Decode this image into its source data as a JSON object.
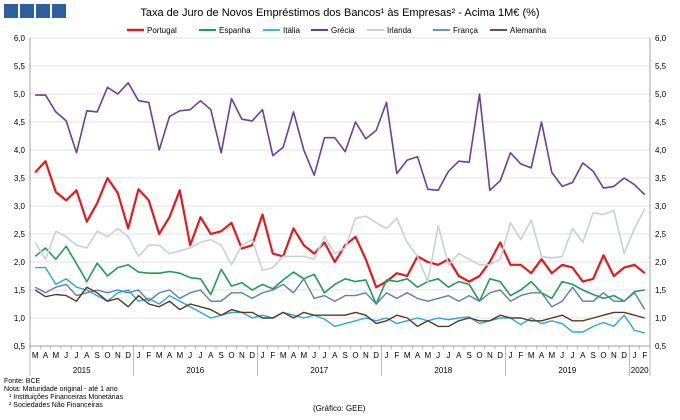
{
  "chart_data": {
    "type": "line",
    "title": "Taxa de Juro de Novos Empréstimos dos Bancos¹ às Empresas² - Acima 1M€ (%)",
    "ylim": [
      0.5,
      6.0
    ],
    "yticks": [
      "0,5",
      "1,0",
      "1,5",
      "2,0",
      "2,5",
      "3,0",
      "3,5",
      "4,0",
      "4,5",
      "5,0",
      "5,5",
      "6,0"
    ],
    "ytick_values": [
      0.5,
      1.0,
      1.5,
      2.0,
      2.5,
      3.0,
      3.5,
      4.0,
      4.5,
      5.0,
      5.5,
      6.0
    ],
    "months": [
      "M",
      "A",
      "M",
      "J",
      "J",
      "A",
      "S",
      "O",
      "N",
      "D",
      "J",
      "F",
      "M",
      "A",
      "M",
      "J",
      "J",
      "A",
      "S",
      "O",
      "N",
      "D",
      "J",
      "F",
      "M",
      "A",
      "M",
      "J",
      "J",
      "A",
      "S",
      "O",
      "N",
      "D",
      "J",
      "F",
      "M",
      "A",
      "M",
      "J",
      "J",
      "A",
      "S",
      "O",
      "N",
      "D",
      "J",
      "F",
      "M",
      "A",
      "M",
      "J",
      "J",
      "A",
      "S",
      "O",
      "N",
      "D",
      "J",
      "F"
    ],
    "years": [
      {
        "label": "2015",
        "start": 0,
        "end": 10
      },
      {
        "label": "2016",
        "start": 10,
        "end": 22
      },
      {
        "label": "2017",
        "start": 22,
        "end": 34
      },
      {
        "label": "2018",
        "start": 34,
        "end": 46
      },
      {
        "label": "2019",
        "start": 46,
        "end": 58
      },
      {
        "label": "2020",
        "start": 58,
        "end": 60
      }
    ],
    "series": [
      {
        "name": "Portugal",
        "color": "#e31a1c",
        "width": 2.2,
        "values": [
          3.6,
          3.8,
          3.25,
          3.1,
          3.28,
          2.72,
          3.05,
          3.5,
          3.23,
          2.6,
          3.3,
          3.1,
          2.5,
          2.8,
          3.28,
          2.3,
          2.8,
          2.5,
          2.55,
          2.7,
          2.24,
          2.3,
          2.85,
          2.15,
          2.1,
          2.6,
          2.3,
          2.15,
          2.35,
          2.0,
          2.3,
          2.45,
          2.05,
          1.55,
          1.65,
          1.8,
          1.75,
          2.1,
          2.0,
          1.95,
          2.05,
          1.75,
          1.65,
          1.75,
          2.0,
          2.35,
          1.95,
          1.95,
          1.8,
          2.05,
          1.8,
          1.95,
          1.9,
          1.65,
          1.7,
          2.12,
          1.75,
          1.9,
          1.95,
          1.8
        ]
      },
      {
        "name": "Espanha",
        "color": "#1f9d55",
        "width": 1.6,
        "values": [
          2.1,
          2.25,
          2.05,
          2.28,
          1.97,
          1.65,
          1.98,
          1.75,
          1.9,
          1.95,
          1.82,
          1.8,
          1.8,
          1.83,
          1.8,
          1.72,
          1.7,
          1.42,
          1.87,
          1.57,
          1.63,
          1.5,
          1.6,
          1.52,
          1.68,
          1.82,
          1.7,
          1.78,
          1.45,
          1.6,
          1.7,
          1.65,
          1.68,
          1.25,
          1.68,
          1.65,
          1.7,
          1.55,
          1.65,
          1.7,
          1.55,
          1.65,
          1.6,
          1.3,
          1.7,
          1.65,
          1.4,
          1.5,
          1.65,
          1.45,
          1.35,
          1.65,
          1.6,
          1.5,
          1.42,
          1.35,
          1.4,
          1.3,
          1.47,
          1.5
        ]
      },
      {
        "name": "Itália",
        "color": "#29a7e1",
        "width": 1.4,
        "values": [
          1.9,
          1.9,
          1.6,
          1.7,
          1.55,
          1.5,
          1.4,
          1.3,
          1.45,
          1.5,
          1.3,
          1.35,
          1.25,
          1.4,
          1.3,
          1.2,
          1.1,
          1.0,
          1.05,
          1.1,
          1.1,
          1.0,
          1.05,
          1.0,
          1.1,
          1.05,
          1.0,
          1.05,
          0.98,
          0.85,
          0.9,
          0.95,
          1.0,
          0.95,
          1.0,
          0.9,
          0.95,
          1.0,
          0.95,
          1.0,
          0.97,
          1.0,
          1.02,
          0.9,
          0.95,
          1.0,
          1.0,
          0.88,
          1.0,
          0.9,
          0.95,
          0.9,
          0.75,
          0.75,
          0.85,
          0.92,
          0.85,
          1.05,
          0.78,
          0.73
        ]
      },
      {
        "name": "Grécia",
        "color": "#6b3fa0",
        "width": 1.6,
        "values": [
          4.98,
          4.98,
          4.68,
          4.52,
          3.95,
          4.7,
          4.68,
          5.12,
          5.0,
          5.2,
          4.88,
          4.85,
          4.0,
          4.6,
          4.7,
          4.72,
          4.88,
          4.72,
          3.95,
          4.92,
          4.55,
          4.52,
          4.72,
          3.9,
          4.05,
          4.68,
          4.0,
          3.55,
          4.22,
          4.22,
          3.97,
          4.5,
          4.2,
          4.35,
          4.85,
          3.58,
          3.82,
          3.88,
          3.3,
          3.28,
          3.62,
          3.8,
          3.78,
          5.0,
          3.28,
          3.45,
          3.95,
          3.75,
          3.68,
          4.5,
          3.6,
          3.35,
          3.42,
          3.77,
          3.62,
          3.32,
          3.35,
          3.5,
          3.38,
          3.2
        ]
      },
      {
        "name": "Irlanda",
        "color": "#c6d1dc",
        "width": 1.6,
        "values": [
          2.35,
          2.05,
          2.55,
          2.45,
          2.3,
          2.25,
          2.55,
          2.45,
          2.6,
          2.45,
          2.1,
          2.3,
          2.3,
          2.15,
          2.2,
          2.25,
          2.35,
          2.4,
          2.3,
          1.95,
          2.3,
          2.4,
          1.85,
          1.9,
          2.1,
          2.1,
          2.1,
          2.05,
          2.45,
          2.15,
          2.25,
          2.78,
          2.82,
          2.7,
          2.6,
          2.78,
          2.35,
          2.1,
          1.65,
          2.65,
          1.95,
          2.15,
          2.05,
          1.95,
          1.95,
          2.05,
          2.7,
          2.4,
          2.75,
          2.1,
          2.07,
          2.1,
          2.6,
          2.35,
          2.88,
          2.85,
          2.92,
          2.15,
          2.6,
          2.95
        ]
      },
      {
        "name": "França",
        "color": "#5b7fb5",
        "width": 1.4,
        "values": [
          1.55,
          1.45,
          1.55,
          1.6,
          1.4,
          1.45,
          1.5,
          1.45,
          1.5,
          1.45,
          1.5,
          1.3,
          1.45,
          1.5,
          1.35,
          1.45,
          1.5,
          1.3,
          1.3,
          1.45,
          1.45,
          1.35,
          1.45,
          1.5,
          1.6,
          1.45,
          1.7,
          1.35,
          1.4,
          1.3,
          1.4,
          1.4,
          1.45,
          1.25,
          1.45,
          1.35,
          1.45,
          1.35,
          1.3,
          1.35,
          1.4,
          1.3,
          1.4,
          1.3,
          1.45,
          1.5,
          1.3,
          1.4,
          1.45,
          1.45,
          1.2,
          1.3,
          1.55,
          1.3,
          1.3,
          1.45,
          1.3,
          1.3,
          1.45,
          1.15
        ]
      },
      {
        "name": "Alemanha",
        "color": "#5a3a1e",
        "width": 1.4,
        "values": [
          1.5,
          1.38,
          1.42,
          1.4,
          1.3,
          1.55,
          1.45,
          1.3,
          1.35,
          1.2,
          1.4,
          1.25,
          1.2,
          1.3,
          1.15,
          1.25,
          1.2,
          1.15,
          1.05,
          1.15,
          1.1,
          1.1,
          1.0,
          1.0,
          1.1,
          1.0,
          1.1,
          1.05,
          1.05,
          1.05,
          1.05,
          1.1,
          1.05,
          0.9,
          0.95,
          1.05,
          1.0,
          0.85,
          0.95,
          0.85,
          0.85,
          0.95,
          1.0,
          0.95,
          0.95,
          1.05,
          1.0,
          1.0,
          0.95,
          0.95,
          1.0,
          1.05,
          0.95,
          0.95,
          1.0,
          1.05,
          1.1,
          1.1,
          1.05,
          1.0
        ]
      }
    ]
  },
  "notes": {
    "source": "Fonte: BCE",
    "note": "Nota: Maturidade original - até 1 ano",
    "footnote1": "¹ Instituições Financeiras Monetárias",
    "footnote2": "² Sociedades Não Financeiras",
    "credit": "(Gráfico: GEE)"
  }
}
